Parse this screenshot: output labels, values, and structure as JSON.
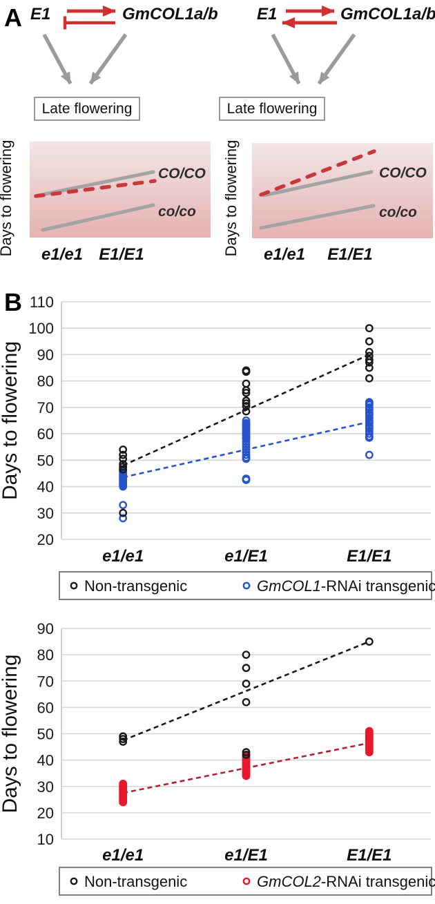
{
  "figure": {
    "panel_a_label": "A",
    "panel_b_label": "B"
  },
  "colors": {
    "red": "#d03030",
    "gray": "#9b9b9b",
    "schematic_line_gray": "#a3a3a3",
    "schematic_dash_red": "#c9383c",
    "black_series": "#1a1a1a",
    "blue_series": "#2753cc",
    "red_series": "#e8192c",
    "red_trend": "#b22038",
    "gridline": "#d6d6d6",
    "spine": "#c4c4c4",
    "legend_border": "#808080",
    "box_border": "#999999",
    "bg_top": "#f2e6e6",
    "bg_bottom": "#e5b2b2"
  },
  "panelA": {
    "left_diagram": {
      "gene_left": "E1",
      "gene_right": "GmCOL1a/b",
      "outcome_box": "Late flowering",
      "schematic": {
        "ylabel": "Days to flowering",
        "x_labels": [
          "e1/e1",
          "E1/E1"
        ],
        "line_labels": [
          "CO/CO",
          "co/co"
        ]
      }
    },
    "right_diagram": {
      "gene_left": "E1",
      "gene_right": "GmCOL1a/b",
      "outcome_box": "Late flowering",
      "schematic": {
        "ylabel": "Days to flowering",
        "x_labels": [
          "e1/e1",
          "E1/E1"
        ],
        "line_labels": [
          "CO/CO",
          "co/co"
        ]
      }
    }
  },
  "chart_data": [
    {
      "type": "scatter",
      "title": "",
      "ylabel": "Days to flowering",
      "ylim": [
        20,
        110
      ],
      "ytick_step": 10,
      "grid": true,
      "legend_position": "bottom",
      "categories": [
        "e1/e1",
        "e1/E1",
        "E1/E1"
      ],
      "series": [
        {
          "name": "Non-transgenic",
          "color": "#1a1a1a",
          "values": [
            [
              54,
              52,
              50.5,
              48.5,
              47.5,
              46.5,
              30
            ],
            [
              84,
              83.5,
              79,
              76.5,
              75.5,
              72.5,
              71.5,
              70.5,
              68.5
            ],
            [
              100,
              95,
              91,
              89.5,
              88,
              87,
              85,
              81
            ]
          ]
        },
        {
          "name": "GmCOL1-RNAi transgenic",
          "color": "#2753cc",
          "values": [
            [
              46.5,
              46,
              45.5,
              45,
              44.5,
              44,
              43.5,
              43,
              42.5,
              42,
              41.5,
              41,
              40.5,
              40,
              33,
              28
            ],
            [
              65,
              64,
              63.5,
              63,
              62.5,
              62,
              61.5,
              61,
              60.5,
              60,
              59.5,
              59,
              58.5,
              58,
              57,
              56,
              55,
              54,
              53,
              52,
              51,
              50.5,
              43,
              42.5
            ],
            [
              72,
              71.5,
              71,
              70,
              69.5,
              69,
              68,
              67.5,
              67,
              66,
              65,
              64.5,
              64,
              63,
              62.5,
              62,
              61,
              60,
              59,
              58.5,
              52
            ]
          ]
        }
      ],
      "trendlines": [
        {
          "series": "Non-transgenic",
          "from": 48,
          "to": 90,
          "color": "#1a1a1a"
        },
        {
          "series": "GmCOL1-RNAi transgenic",
          "from": 43.5,
          "to": 64.5,
          "color": "#2753cc"
        }
      ],
      "legend": [
        {
          "italic": "",
          "text": "Non-transgenic",
          "color": "#1a1a1a"
        },
        {
          "italic": "GmCOL1",
          "text": "-RNAi transgenic",
          "color": "#2753cc"
        }
      ]
    },
    {
      "type": "scatter",
      "title": "",
      "ylabel": "Days to flowering",
      "ylim": [
        10,
        90
      ],
      "ytick_step": 10,
      "grid": true,
      "legend_position": "bottom",
      "categories": [
        "e1/e1",
        "e1/E1",
        "E1/E1"
      ],
      "series": [
        {
          "name": "Non-transgenic",
          "color": "#1a1a1a",
          "values": [
            [
              49,
              48,
              47
            ],
            [
              80,
              75,
              69,
              62,
              43,
              42
            ],
            [
              85
            ]
          ]
        },
        {
          "name": "GmCOL2-RNAi transgenic",
          "color": "#e8192c",
          "values": [
            [
              31,
              30.5,
              30,
              29.5,
              29,
              28.5,
              28,
              27.5,
              27,
              26.5,
              26,
              25.5,
              25,
              24.5,
              24
            ],
            [
              42,
              41.5,
              41,
              40.5,
              40,
              39.5,
              39,
              38.5,
              38,
              37.5,
              37,
              36.5,
              36,
              35.5,
              35,
              34.5,
              34
            ],
            [
              51,
              50.5,
              50,
              49.5,
              49,
              48.5,
              48,
              47.5,
              47,
              46.5,
              46,
              45.5,
              45,
              44.5,
              44,
              43.5,
              43
            ]
          ]
        }
      ],
      "trendlines": [
        {
          "series": "Non-transgenic",
          "from": 47.5,
          "to": 85,
          "color": "#1a1a1a"
        },
        {
          "series": "GmCOL2-RNAi transgenic",
          "from": 27.5,
          "to": 46.5,
          "color": "#b22038"
        }
      ],
      "legend": [
        {
          "italic": "",
          "text": "Non-transgenic",
          "color": "#1a1a1a"
        },
        {
          "italic": "GmCOL2",
          "text": "-RNAi transgenic",
          "color": "#e8192c"
        }
      ]
    }
  ]
}
